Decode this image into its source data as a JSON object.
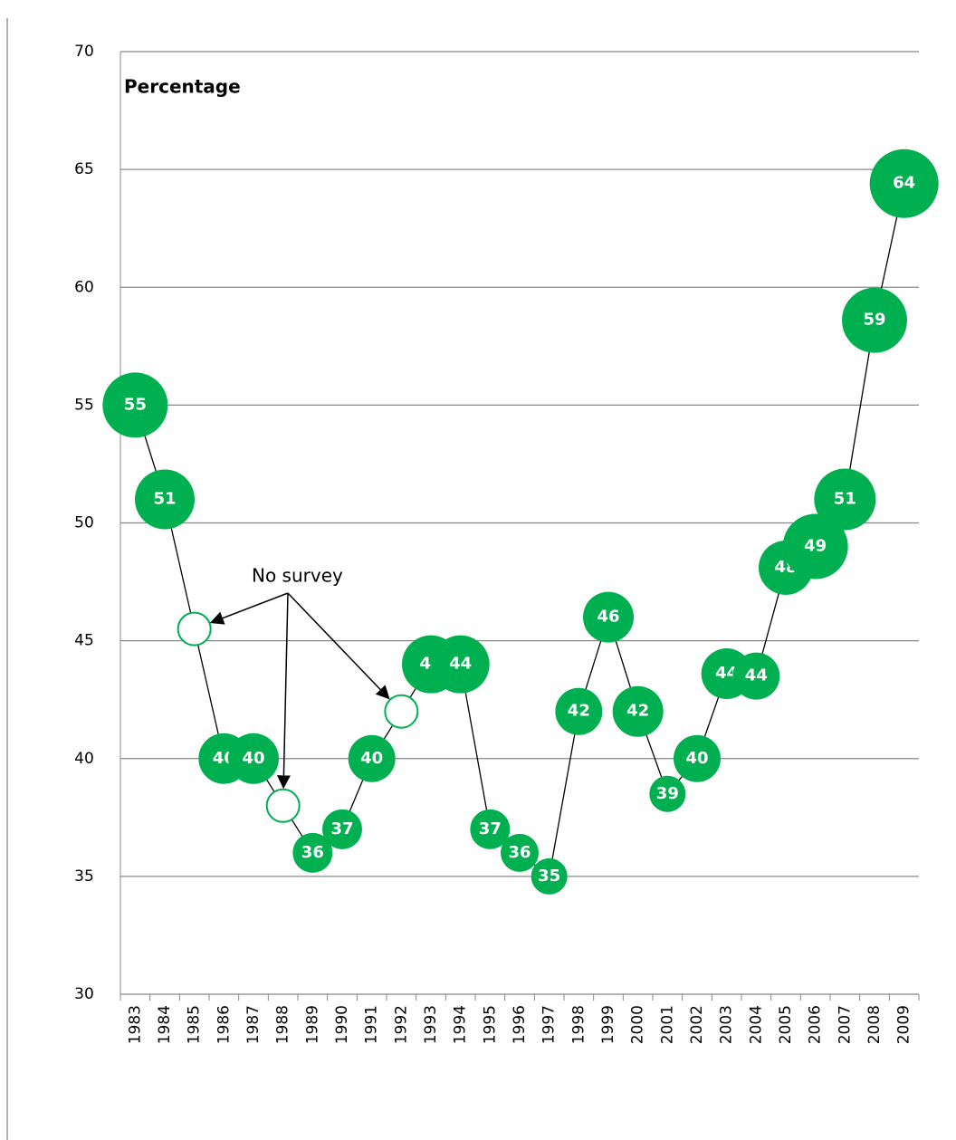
{
  "chart_data": {
    "type": "bubble-line",
    "y_label": "Percentage",
    "categories": [
      "1983",
      "1984",
      "1985",
      "1986",
      "1987",
      "1988",
      "1989",
      "1990",
      "1991",
      "1992",
      "1993",
      "1994",
      "1995",
      "1996",
      "1997",
      "1998",
      "1999",
      "2000",
      "2001",
      "2002",
      "2003",
      "2004",
      "2005",
      "2006",
      "2007",
      "2008",
      "2009"
    ],
    "series": [
      {
        "name": null,
        "color": "#00b050",
        "values": [
          55,
          51,
          45.5,
          40,
          40,
          38,
          36,
          37,
          40,
          42,
          44,
          44,
          37,
          36,
          35,
          42,
          46,
          42,
          38.5,
          40,
          43.6,
          43.5,
          48.1,
          49,
          51,
          58.6,
          64.4
        ],
        "value_labels": [
          "55",
          "51",
          null,
          "40",
          "40",
          null,
          "36",
          "37",
          "40",
          null,
          "44",
          "44",
          "37",
          "36",
          "35",
          "42",
          "46",
          "42",
          "39",
          "40",
          "44",
          "44",
          "48",
          "49",
          "51",
          "59",
          "64"
        ],
        "sizes": [
          36,
          33,
          18,
          28,
          28,
          18,
          22,
          22,
          26,
          18,
          32,
          32,
          22,
          21,
          20,
          26,
          28,
          28,
          20,
          26,
          28,
          26,
          30,
          36,
          34,
          36,
          38
        ]
      }
    ],
    "annotations": [
      {
        "text": "No survey",
        "points": [
          2,
          5,
          9
        ]
      }
    ],
    "ylim": [
      30,
      70
    ],
    "yticks": [
      30,
      35,
      40,
      45,
      50,
      55,
      60,
      65,
      70
    ],
    "grid": true
  }
}
